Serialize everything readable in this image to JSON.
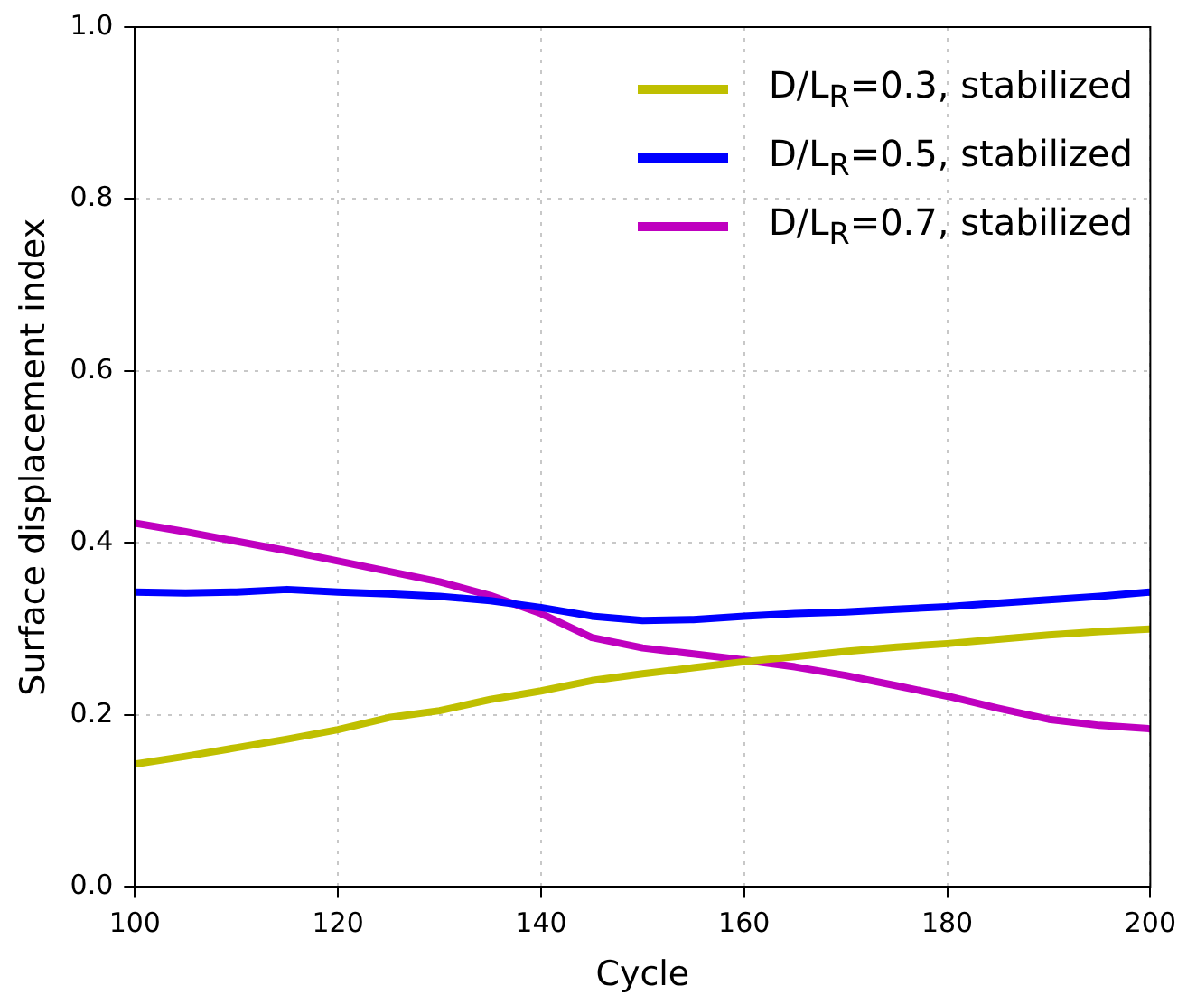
{
  "chart_data": {
    "type": "line",
    "xlabel": "Cycle",
    "ylabel": "Surface displacement index",
    "x": [
      100,
      105,
      110,
      115,
      120,
      125,
      130,
      135,
      140,
      145,
      150,
      155,
      160,
      165,
      170,
      175,
      180,
      185,
      190,
      195,
      200
    ],
    "series": [
      {
        "name": "D/L$_{R}$=0.3, stabilized",
        "color": "#bfbf00",
        "values": [
          0.143,
          0.152,
          0.162,
          0.172,
          0.183,
          0.197,
          0.205,
          0.218,
          0.228,
          0.24,
          0.248,
          0.255,
          0.262,
          0.268,
          0.274,
          0.279,
          0.283,
          0.288,
          0.293,
          0.297,
          0.3
        ]
      },
      {
        "name": "D/L$_{R}$=0.5, stabilized",
        "color": "#0000ff",
        "values": [
          0.343,
          0.342,
          0.343,
          0.346,
          0.343,
          0.341,
          0.338,
          0.333,
          0.325,
          0.315,
          0.31,
          0.311,
          0.315,
          0.318,
          0.32,
          0.323,
          0.326,
          0.33,
          0.334,
          0.338,
          0.343
        ]
      },
      {
        "name": "D/L$_{R}$=0.7, stabilized",
        "color": "#bf00bf",
        "values": [
          0.423,
          0.413,
          0.402,
          0.391,
          0.379,
          0.367,
          0.355,
          0.339,
          0.318,
          0.29,
          0.278,
          0.271,
          0.264,
          0.256,
          0.246,
          0.234,
          0.222,
          0.208,
          0.195,
          0.188,
          0.184
        ]
      }
    ],
    "xlim": [
      100,
      200
    ],
    "xticks": [
      100,
      120,
      140,
      160,
      180,
      200
    ],
    "ylim": [
      0,
      1
    ],
    "yticks": [
      {
        "value": 0,
        "label": "0.0"
      },
      {
        "value": 0.2,
        "label": "0.2"
      },
      {
        "value": 0.4,
        "label": "0.4"
      },
      {
        "value": 0.6,
        "label": "0.6"
      },
      {
        "value": 0.8,
        "label": "0.8"
      },
      {
        "value": 1,
        "label": "1.0"
      }
    ],
    "grid": true,
    "legend": "top right",
    "line_style": "solid",
    "marker": "none"
  }
}
